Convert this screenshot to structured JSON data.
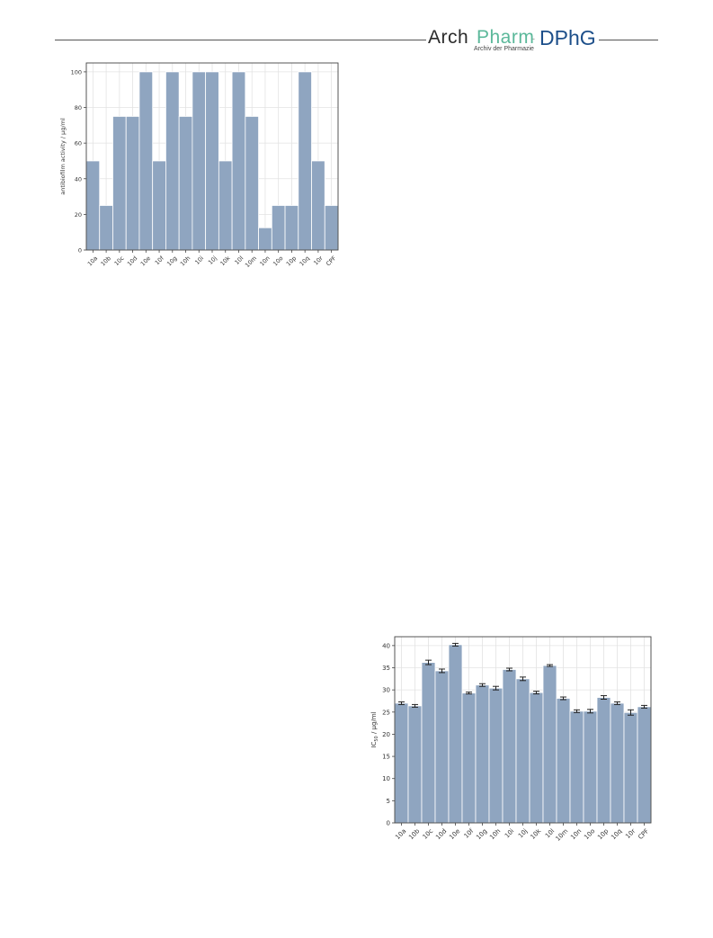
{
  "header": {
    "logo_arch": "Arch",
    "logo_pharm": "Pharm",
    "logo_sub": "Archiv der Pharmazie",
    "logo_dphg": "DPhG",
    "logo_sep": "-"
  },
  "chart_data": [
    {
      "type": "bar",
      "title": "",
      "xlabel": "",
      "ylabel": "antibiofilm activity / µg/ml",
      "ylim": [
        0,
        105
      ],
      "yticks": [
        0,
        20,
        40,
        60,
        80,
        100
      ],
      "grid": true,
      "color": "#8fa5c0",
      "categories": [
        "10a",
        "10b",
        "10c",
        "10d",
        "10e",
        "10f",
        "10g",
        "10h",
        "10i",
        "10j",
        "10k",
        "10l",
        "10m",
        "10n",
        "10o",
        "10p",
        "10q",
        "10r",
        "CPF"
      ],
      "values": [
        50,
        25,
        75,
        75,
        100,
        50,
        100,
        75,
        100,
        100,
        50,
        100,
        75,
        12.5,
        25,
        25,
        100,
        50,
        25
      ]
    },
    {
      "type": "bar",
      "title": "",
      "xlabel": "",
      "ylabel": "IC50 / µg/ml",
      "ylabel_main": "IC",
      "ylabel_sub": "50",
      "ylabel_rest": " / µg/ml",
      "ylim": [
        0,
        42
      ],
      "yticks": [
        0,
        5,
        10,
        15,
        20,
        25,
        30,
        35,
        40
      ],
      "grid": true,
      "color": "#8fa5c0",
      "categories": [
        "10a",
        "10b",
        "10c",
        "10d",
        "10e",
        "10f",
        "10g",
        "10h",
        "10i",
        "10j",
        "10k",
        "10l",
        "10m",
        "10n",
        "10o",
        "10p",
        "10q",
        "10r",
        "CPF"
      ],
      "values": [
        27.0,
        26.4,
        36.2,
        34.3,
        40.2,
        29.3,
        31.1,
        30.4,
        34.6,
        32.5,
        29.4,
        35.5,
        28.1,
        25.2,
        25.2,
        28.3,
        27.0,
        24.9,
        26.2
      ],
      "errors": [
        0.3,
        0.3,
        0.5,
        0.4,
        0.3,
        0.2,
        0.3,
        0.4,
        0.3,
        0.4,
        0.3,
        0.2,
        0.3,
        0.3,
        0.4,
        0.4,
        0.3,
        0.6,
        0.3
      ]
    }
  ]
}
